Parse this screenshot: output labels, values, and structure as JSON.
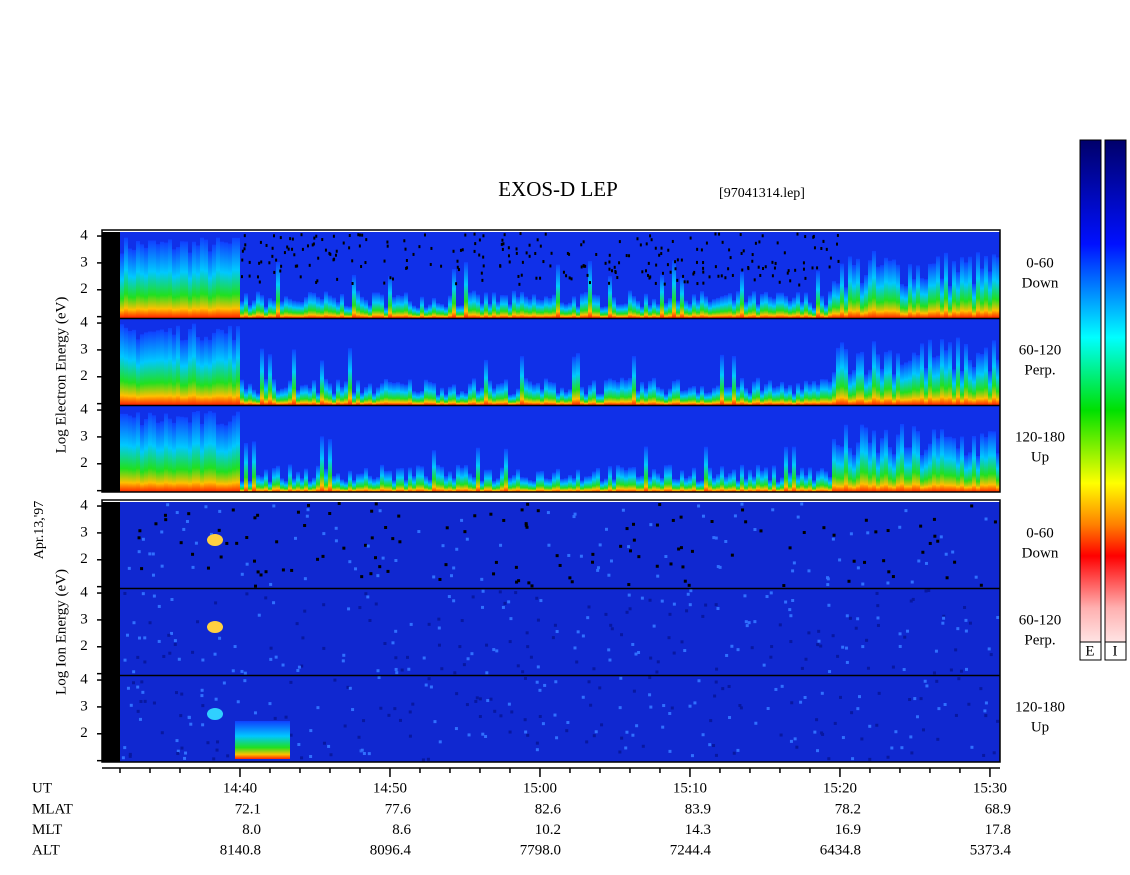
{
  "title": "EXOS-D LEP",
  "file": "[97041314.lep]",
  "date": "Apr.13,'97",
  "groups": [
    {
      "ylabel": "Log Electron Energy (eV)",
      "panels": [
        {
          "range": "0-60",
          "direction": "Down"
        },
        {
          "range": "60-120",
          "direction": "Perp."
        },
        {
          "range": "120-180",
          "direction": "Up"
        }
      ]
    },
    {
      "ylabel": "Log Ion Energy (eV)",
      "panels": [
        {
          "range": "0-60",
          "direction": "Down"
        },
        {
          "range": "60-120",
          "direction": "Perp."
        },
        {
          "range": "120-180",
          "direction": "Up"
        }
      ]
    }
  ],
  "ylim": [
    0.95,
    4.15
  ],
  "yticks": [
    {
      "value": 1,
      "label": null
    },
    2,
    3,
    4
  ],
  "xlabel": "UT",
  "xlim": [
    870.8,
    930.67
  ],
  "xticks": [
    {
      "value": 880,
      "label": "14:40"
    },
    {
      "value": 890,
      "label": "14:50"
    },
    {
      "value": 900,
      "label": "15:00"
    },
    {
      "value": 910,
      "label": "15:10"
    },
    {
      "value": 920,
      "label": "15:20"
    },
    {
      "value": 930,
      "label": "15:30"
    }
  ],
  "xminor": [
    872,
    874,
    876,
    878,
    882,
    884,
    886,
    888,
    892,
    894,
    896,
    898,
    902,
    904,
    906,
    908,
    912,
    914,
    916,
    918,
    922,
    924,
    926,
    928
  ],
  "ephemeris": [
    {
      "label": "MLAT",
      "values": [
        "72.1",
        "77.6",
        "82.6",
        "83.9",
        "78.2",
        "68.9"
      ]
    },
    {
      "label": "MLT",
      "values": [
        "8.0",
        "8.6",
        "10.2",
        "14.3",
        "16.9",
        "17.8"
      ]
    },
    {
      "label": "ALT",
      "values": [
        "8140.8",
        "8096.4",
        "7798.0",
        "7244.4",
        "6434.8",
        "5373.4"
      ]
    }
  ],
  "colorbar": {
    "labels": [
      "E",
      "I"
    ]
  }
}
